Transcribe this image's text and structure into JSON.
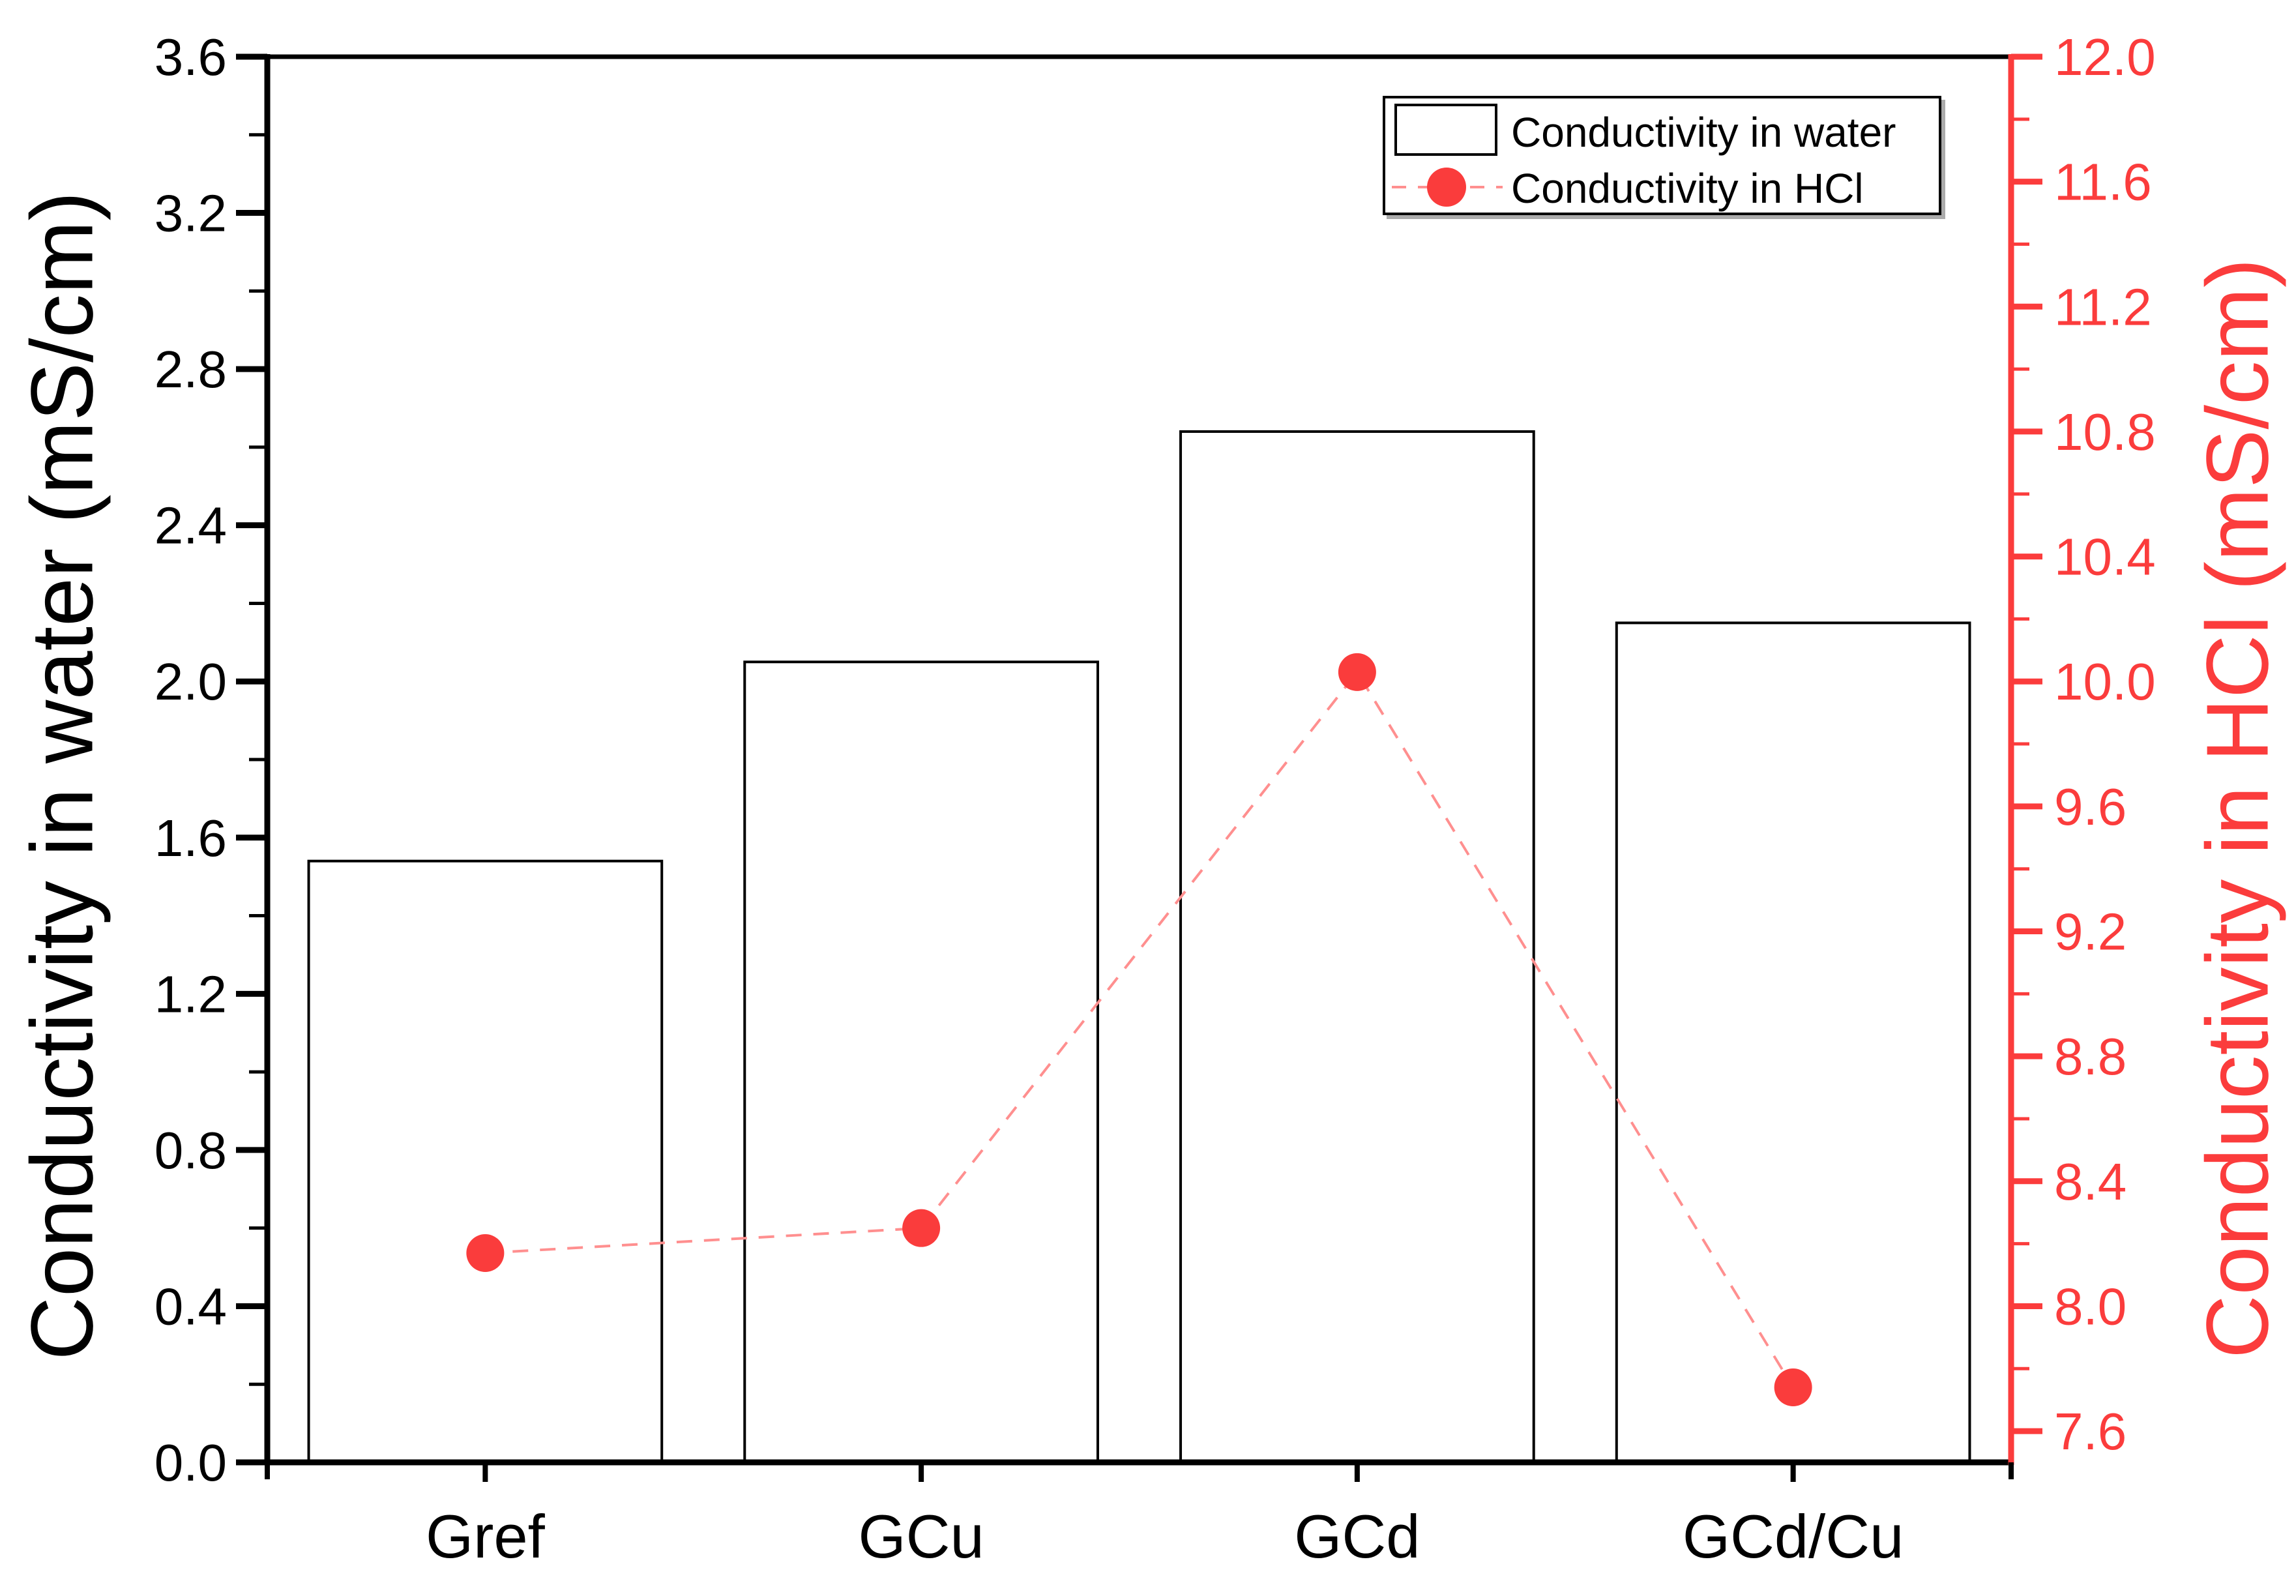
{
  "chart_data": {
    "type": "bar",
    "subtype": "dual-axis bar + line",
    "categories": [
      "Gref",
      "GCu",
      "GCd",
      "GCd/Cu"
    ],
    "series": [
      {
        "name": "Conductivity in water",
        "type": "bar",
        "axis": "left",
        "values": [
          1.54,
          2.05,
          2.64,
          2.15
        ]
      },
      {
        "name": "Conductivity in HCl",
        "type": "line",
        "axis": "right",
        "values": [
          8.17,
          8.25,
          10.03,
          7.74
        ]
      }
    ],
    "left_axis": {
      "label": "Conductivity in water (mS/cm)",
      "min": 0.0,
      "max": 3.6,
      "major_tick_labels": [
        "0.0",
        "0.4",
        "0.8",
        "1.2",
        "1.6",
        "2.0",
        "2.4",
        "2.8",
        "3.2",
        "3.6"
      ],
      "minor_step": 0.2
    },
    "right_axis": {
      "label": "Conductivity in HCl (mS/cm)",
      "min": 7.5,
      "max": 12.0,
      "major_tick_labels": [
        "7.6",
        "8.0",
        "8.4",
        "8.8",
        "9.2",
        "9.6",
        "10.0",
        "10.4",
        "10.8",
        "11.2",
        "11.6",
        "12.0"
      ],
      "minor_step": 0.2
    },
    "legend": {
      "position": "top-right-inside",
      "entries": [
        "Conductivity in water",
        "Conductivity in HCl"
      ]
    },
    "grid": false,
    "colors": {
      "bar_fill": "#ffffff",
      "bar_border": "#000000",
      "line": "#ff8f8f",
      "marker": "#fa3c3c",
      "red_axis": "#fb3c3c",
      "black_axis": "#000000"
    }
  }
}
